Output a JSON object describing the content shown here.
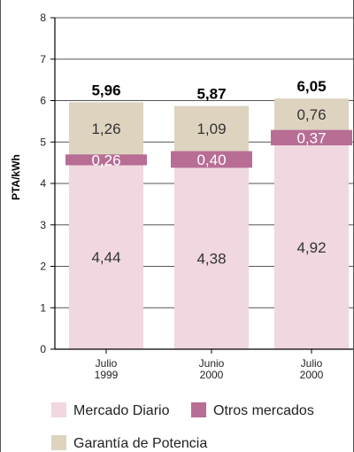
{
  "chart_data": {
    "type": "bar",
    "stacked": true,
    "categories": [
      [
        "Julio",
        "1999"
      ],
      [
        "Junio",
        "2000"
      ],
      [
        "Julio",
        "2000"
      ]
    ],
    "series": [
      {
        "name": "Mercado Diario",
        "values": [
          4.44,
          4.38,
          4.92
        ],
        "labels": [
          "4,44",
          "4,38",
          "4,92"
        ],
        "color": "#f0d7e0"
      },
      {
        "name": "Otros mercados",
        "values": [
          0.26,
          0.4,
          0.37
        ],
        "labels": [
          "0,26",
          "0,40",
          "0,37"
        ],
        "color": "#b86d95"
      },
      {
        "name": "Garantía de Potencia",
        "values": [
          1.26,
          1.09,
          0.76
        ],
        "labels": [
          "1,26",
          "1,09",
          "0,76"
        ],
        "color": "#ddd3bf"
      }
    ],
    "totals": [
      "5,96",
      "5,87",
      "6,05"
    ],
    "ylabel": "PTA/kWh",
    "yticks": [
      "0",
      "1",
      "2",
      "3",
      "4",
      "5",
      "6",
      "7",
      "8"
    ],
    "ylim": [
      0,
      8
    ],
    "grid": true,
    "legend_position": "bottom"
  }
}
